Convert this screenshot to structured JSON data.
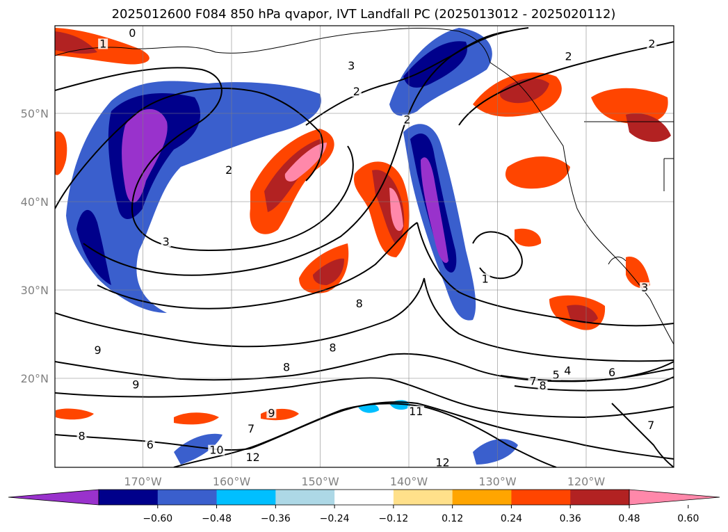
{
  "title": "2025012600 F084 850 hPa qvapor, IVT Landfall PC (2025013012 - 2025020112)",
  "lat_ticks": [
    {
      "label": "50°N",
      "value": 50
    },
    {
      "label": "40°N",
      "value": 40
    },
    {
      "label": "30°N",
      "value": 30
    },
    {
      "label": "20°N",
      "value": 20
    }
  ],
  "lon_ticks": [
    {
      "label": "170°W",
      "value": -170
    },
    {
      "label": "160°W",
      "value": -160
    },
    {
      "label": "150°W",
      "value": -150
    },
    {
      "label": "140°W",
      "value": -140
    },
    {
      "label": "130°W",
      "value": -130
    },
    {
      "label": "120°W",
      "value": -120
    }
  ],
  "colorbar": {
    "colors": [
      "#9932CC",
      "#00008B",
      "#3A5FCD",
      "#00BFFF",
      "#ADD8E6",
      "#FFFFFF",
      "#FFE08A",
      "#FFA500",
      "#FF4500",
      "#B22222",
      "#FF88AA"
    ],
    "labels": [
      "−0.60",
      "−0.48",
      "−0.36",
      "−0.24",
      "−0.12",
      "0.12",
      "0.24",
      "0.36",
      "0.48",
      "0.60"
    ]
  },
  "contour_labels": [
    {
      "text": "0",
      "lon": -171.2,
      "lat": 58.8
    },
    {
      "text": "1",
      "lon": -174.5,
      "lat": 57.6
    },
    {
      "text": "2",
      "lon": -160.3,
      "lat": 43.3
    },
    {
      "text": "3",
      "lon": -146.5,
      "lat": 55.1
    },
    {
      "text": "2",
      "lon": -145.9,
      "lat": 52.2
    },
    {
      "text": "2",
      "lon": -140.2,
      "lat": 49.0
    },
    {
      "text": "2",
      "lon": -122.0,
      "lat": 56.2
    },
    {
      "text": "3",
      "lon": -167.4,
      "lat": 35.2
    },
    {
      "text": "1",
      "lon": -131.4,
      "lat": 31.0
    },
    {
      "text": "8",
      "lon": -145.6,
      "lat": 28.2
    },
    {
      "text": "8",
      "lon": -148.6,
      "lat": 23.2
    },
    {
      "text": "8",
      "lon": -153.8,
      "lat": 21.0
    },
    {
      "text": "9",
      "lon": -175.1,
      "lat": 22.9
    },
    {
      "text": "9",
      "lon": -170.8,
      "lat": 19.0
    },
    {
      "text": "9",
      "lon": -155.5,
      "lat": 15.8
    },
    {
      "text": "7",
      "lon": -157.8,
      "lat": 14.0
    },
    {
      "text": "8",
      "lon": -176.9,
      "lat": 13.2
    },
    {
      "text": "6",
      "lon": -169.2,
      "lat": 12.2
    },
    {
      "text": "10",
      "lon": -162.1,
      "lat": 11.6
    },
    {
      "text": "12",
      "lon": -158.0,
      "lat": 10.8
    },
    {
      "text": "11",
      "lon": -139.6,
      "lat": 16.0
    },
    {
      "text": "12",
      "lon": -136.6,
      "lat": 10.2
    },
    {
      "text": "5",
      "lon": -123.4,
      "lat": 20.1
    },
    {
      "text": "4",
      "lon": -122.1,
      "lat": 20.6
    },
    {
      "text": "7",
      "lon": -126.0,
      "lat": 19.4
    },
    {
      "text": "8",
      "lon": -124.9,
      "lat": 18.9
    },
    {
      "text": "6",
      "lon": -117.1,
      "lat": 20.4
    },
    {
      "text": "7",
      "lon": -112.7,
      "lat": 14.4
    },
    {
      "text": "3",
      "lon": -113.4,
      "lat": 30.0
    },
    {
      "text": "2",
      "lon": -112.6,
      "lat": 57.6
    }
  ]
}
